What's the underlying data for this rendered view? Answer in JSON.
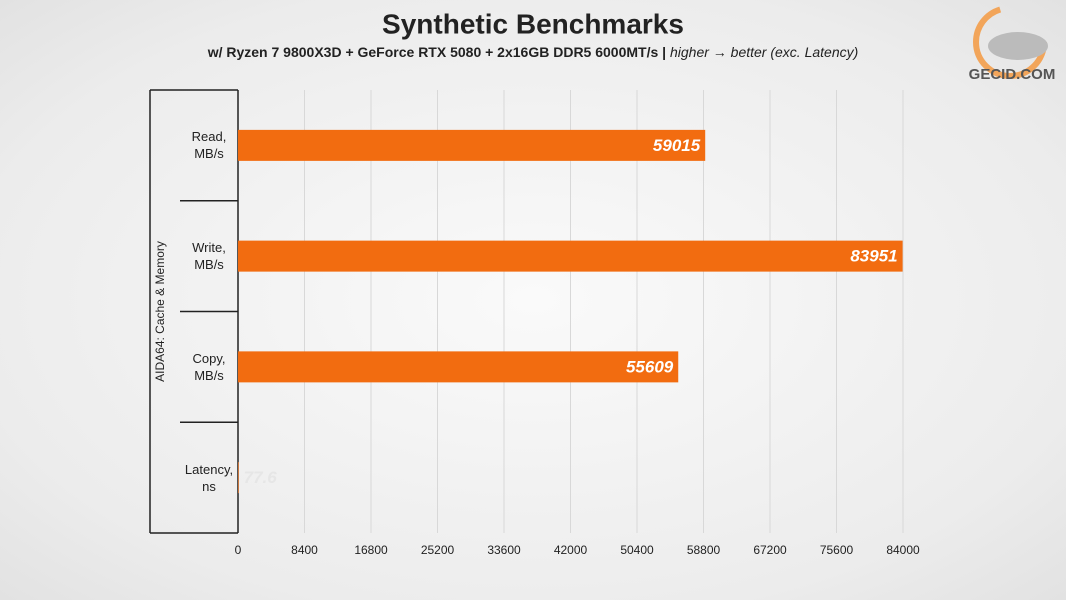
{
  "chart_data": {
    "type": "hbar",
    "title": "Synthetic Benchmarks",
    "subtitle": "w/ Ryzen 7 9800X3D + GeForce RTX 5080 + 2x16GB DDR5 6000MT/s |",
    "subtitle_note": "higher → better (exc. Latency)",
    "watermark": "GECID.COM",
    "group_label": "AIDA64: Cache & Memory",
    "categories": [
      "Read,\nMB/s",
      "Write,\nMB/s",
      "Copy,\nMB/s",
      "Latency,\nns"
    ],
    "values": [
      59015,
      83951,
      55609,
      77.6
    ],
    "color": "#f26c10",
    "xlim": [
      0,
      84000
    ],
    "xticks": [
      0,
      8400,
      16800,
      25200,
      33600,
      42000,
      50400,
      58800,
      67200,
      75600,
      84000
    ],
    "grid": true
  }
}
